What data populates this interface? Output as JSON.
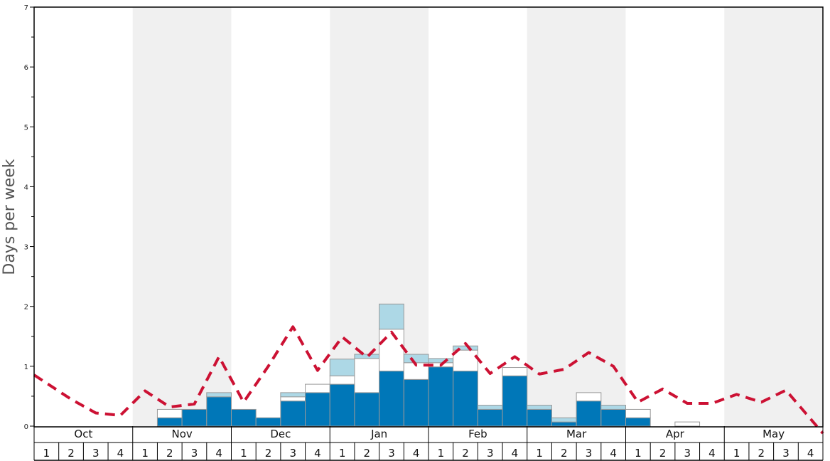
{
  "chart_data": {
    "type": "bar",
    "ylabel": "Days per week",
    "ylim": [
      0,
      7
    ],
    "yticks": [
      0,
      1,
      2,
      3,
      4,
      5,
      6,
      7
    ],
    "months": [
      "Oct",
      "Nov",
      "Dec",
      "Jan",
      "Feb",
      "Mar",
      "Apr",
      "May"
    ],
    "weeks": [
      "1",
      "2",
      "3",
      "4"
    ],
    "shaded_months": [
      "Nov",
      "Jan",
      "Mar",
      "May"
    ],
    "colors": {
      "bar_dark": "#0077b8",
      "bar_white": "#ffffff",
      "bar_light": "#add8e6",
      "bar_edge": "#999999",
      "line": "#cc1133",
      "shade": "#f0f0f0"
    },
    "series": [
      {
        "values": [
          0,
          0,
          0,
          0,
          0,
          0.14,
          0.28,
          0.49,
          0.28,
          0.14,
          0.42,
          0.56,
          0.7,
          0.56,
          0.92,
          0.78,
          0.99,
          0.92,
          0.28,
          0.84,
          0.28,
          0.07,
          0.42,
          0.28,
          0.14,
          0,
          0,
          0,
          0,
          0,
          0,
          0
        ]
      },
      {
        "values": [
          0,
          0,
          0,
          0,
          0,
          0.14,
          0,
          0,
          0,
          0,
          0.07,
          0.14,
          0.14,
          0.57,
          0.7,
          0.28,
          0.07,
          0.35,
          0,
          0.14,
          0,
          0,
          0.14,
          0,
          0.14,
          0,
          0.07,
          0,
          0,
          0,
          0,
          0
        ]
      },
      {
        "values": [
          0,
          0,
          0,
          0,
          0,
          0,
          0,
          0.07,
          0,
          0,
          0.07,
          0,
          0.28,
          0.07,
          0.42,
          0.14,
          0.07,
          0.07,
          0.07,
          0,
          0.07,
          0.07,
          0,
          0.07,
          0,
          0,
          0,
          0,
          0,
          0,
          0,
          0
        ]
      },
      {
        "values": [
          0.72,
          0.45,
          0.22,
          0.18,
          0.59,
          0.32,
          0.37,
          1.16,
          0.4,
          1.0,
          1.66,
          0.93,
          1.49,
          1.15,
          1.57,
          1.02,
          1.02,
          1.38,
          0.88,
          1.16,
          0.87,
          0.95,
          1.23,
          1.0,
          0.4,
          0.62,
          0.38,
          0.38,
          0.53,
          0.4,
          0.6,
          0.12
        ]
      }
    ],
    "grid": false
  }
}
